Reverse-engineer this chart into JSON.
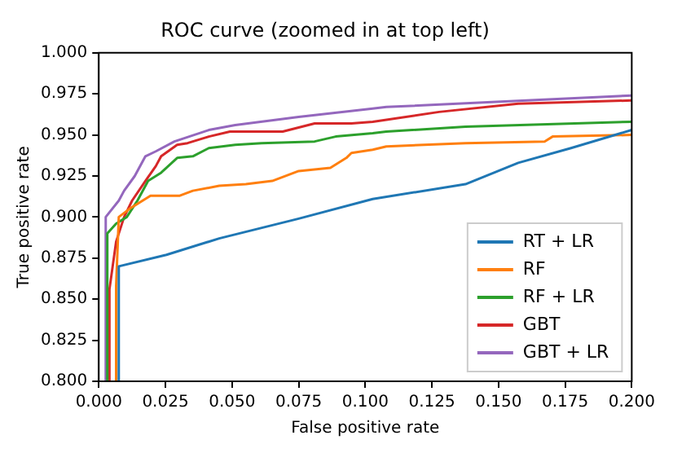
{
  "chart_data": {
    "type": "line",
    "title": "ROC curve (zoomed in at top left)",
    "xlabel": "False positive rate",
    "ylabel": "True positive rate",
    "xlim": [
      0,
      0.2
    ],
    "ylim": [
      0.8,
      1.0
    ],
    "xticks": [
      {
        "value": 0,
        "label": "0.000"
      },
      {
        "value": 0.025,
        "label": "0.025"
      },
      {
        "value": 0.05,
        "label": "0.050"
      },
      {
        "value": 0.075,
        "label": "0.075"
      },
      {
        "value": 0.1,
        "label": "0.100"
      },
      {
        "value": 0.125,
        "label": "0.125"
      },
      {
        "value": 0.15,
        "label": "0.150"
      },
      {
        "value": 0.175,
        "label": "0.175"
      },
      {
        "value": 0.2,
        "label": "0.200"
      }
    ],
    "yticks": [
      {
        "value": 0.8,
        "label": "0.800"
      },
      {
        "value": 0.825,
        "label": "0.825"
      },
      {
        "value": 0.85,
        "label": "0.850"
      },
      {
        "value": 0.875,
        "label": "0.875"
      },
      {
        "value": 0.9,
        "label": "0.900"
      },
      {
        "value": 0.925,
        "label": "0.925"
      },
      {
        "value": 0.95,
        "label": "0.950"
      },
      {
        "value": 0.975,
        "label": "0.975"
      },
      {
        "value": 1.0,
        "label": "1.000"
      }
    ],
    "grid": false,
    "legend": "bottom right",
    "marker": "none",
    "line_style": "solid",
    "series": [
      {
        "name": "RT + LR",
        "color": "#1f77b4",
        "x": [
          0.0075,
          0.0075,
          0.0254,
          0.0452,
          0.075,
          0.1028,
          0.1376,
          0.1574,
          0.1772,
          0.2
        ],
        "values": [
          0.8,
          0.87,
          0.877,
          0.887,
          0.899,
          0.911,
          0.92,
          0.933,
          0.942,
          0.953
        ]
      },
      {
        "name": "RF",
        "color": "#ff7f0e",
        "x": [
          0.0065,
          0.0065,
          0.0075,
          0.0115,
          0.0194,
          0.0304,
          0.0353,
          0.0452,
          0.0552,
          0.0651,
          0.075,
          0.0869,
          0.0929,
          0.0948,
          0.1028,
          0.1079,
          0.1376,
          0.1673,
          0.1703,
          0.2
        ],
        "values": [
          0.8,
          0.858,
          0.9,
          0.905,
          0.913,
          0.913,
          0.916,
          0.919,
          0.92,
          0.922,
          0.928,
          0.93,
          0.936,
          0.939,
          0.941,
          0.943,
          0.945,
          0.946,
          0.949,
          0.95
        ]
      },
      {
        "name": "RF + LR",
        "color": "#2ca02c",
        "x": [
          0.0032,
          0.0032,
          0.0065,
          0.0105,
          0.0145,
          0.0185,
          0.0234,
          0.0294,
          0.0353,
          0.0413,
          0.0512,
          0.0611,
          0.081,
          0.0889,
          0.1028,
          0.1079,
          0.1376,
          0.2
        ],
        "values": [
          0.8,
          0.89,
          0.896,
          0.9,
          0.91,
          0.922,
          0.927,
          0.936,
          0.937,
          0.942,
          0.944,
          0.945,
          0.946,
          0.949,
          0.951,
          0.952,
          0.955,
          0.958
        ]
      },
      {
        "name": "GBT",
        "color": "#d62728",
        "x": [
          0.004,
          0.004,
          0.0065,
          0.0095,
          0.0125,
          0.0175,
          0.0214,
          0.0234,
          0.0294,
          0.0333,
          0.0413,
          0.0492,
          0.069,
          0.081,
          0.0948,
          0.1028,
          0.1277,
          0.1574,
          0.2
        ],
        "values": [
          0.8,
          0.856,
          0.885,
          0.9,
          0.91,
          0.922,
          0.931,
          0.937,
          0.944,
          0.945,
          0.949,
          0.952,
          0.952,
          0.957,
          0.957,
          0.958,
          0.964,
          0.969,
          0.971
        ]
      },
      {
        "name": "GBT + LR",
        "color": "#9467bd",
        "x": [
          0.0026,
          0.0026,
          0.0075,
          0.0095,
          0.0135,
          0.0175,
          0.0214,
          0.0284,
          0.0413,
          0.0512,
          0.075,
          0.1028,
          0.1079,
          0.1475,
          0.2
        ],
        "values": [
          0.8,
          0.9,
          0.91,
          0.916,
          0.925,
          0.937,
          0.94,
          0.946,
          0.953,
          0.956,
          0.961,
          0.966,
          0.967,
          0.97,
          0.974
        ]
      }
    ]
  }
}
